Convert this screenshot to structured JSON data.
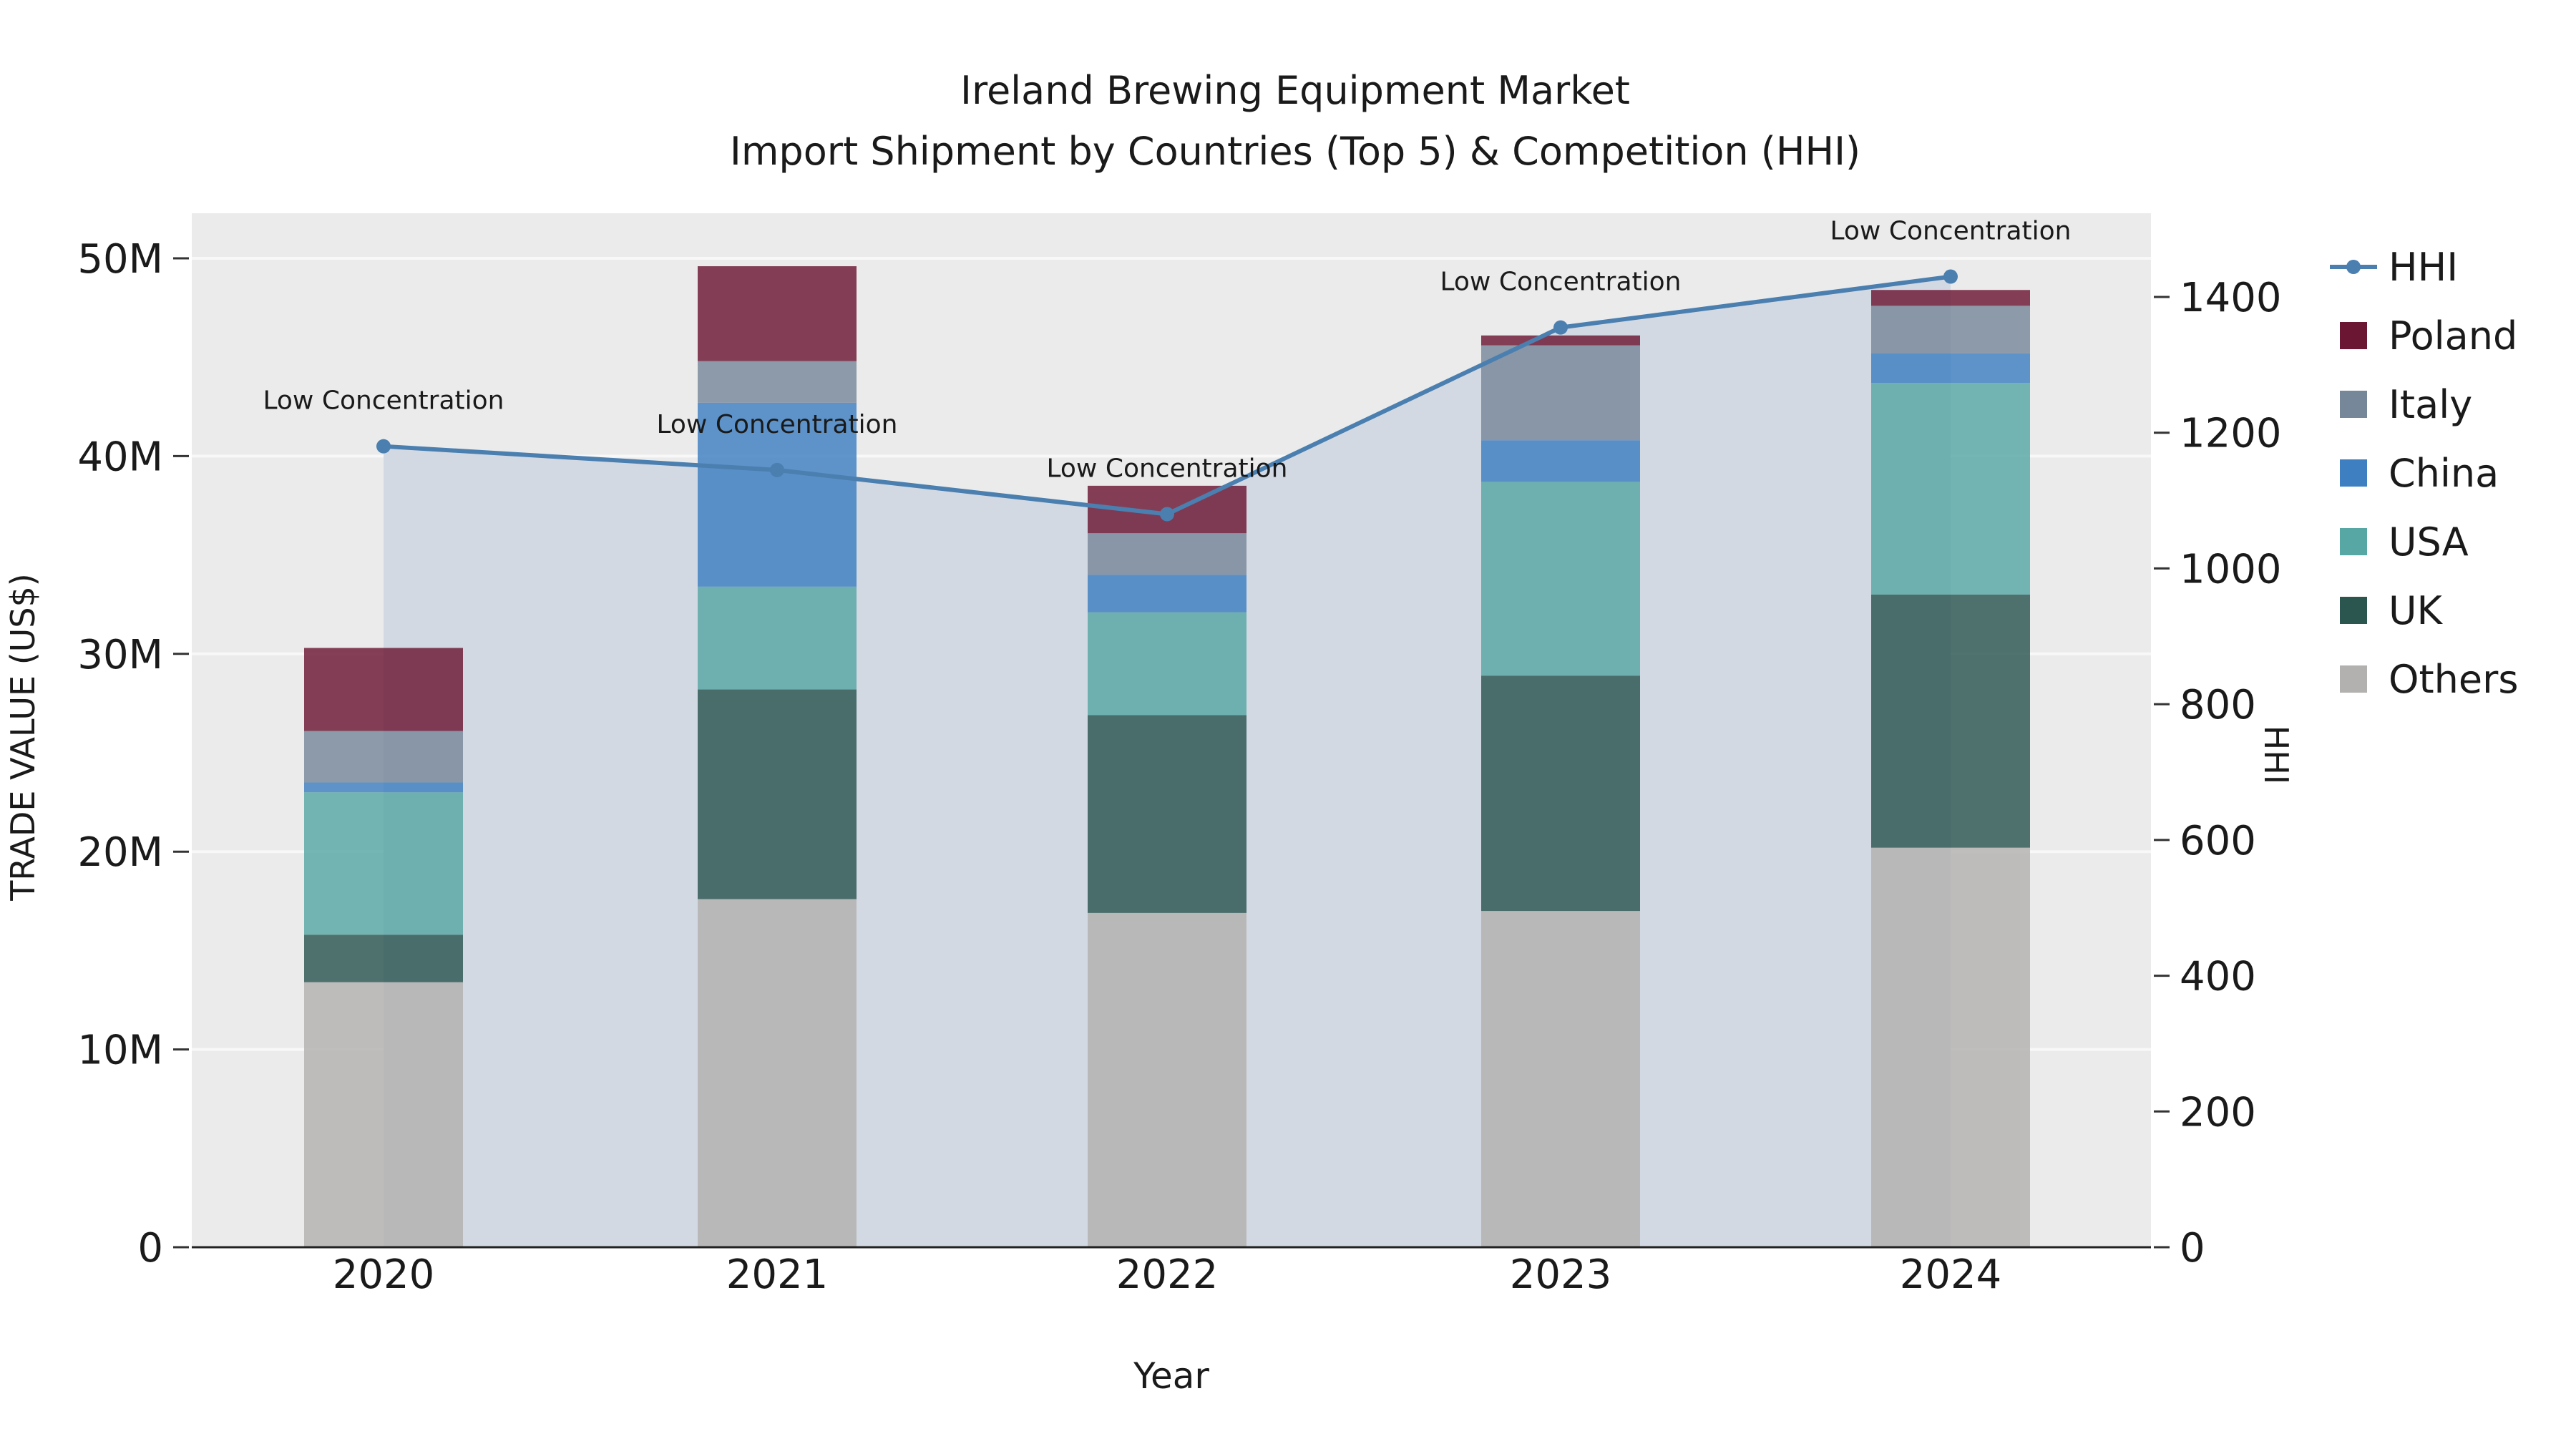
{
  "chart_data": {
    "type": "bar+line",
    "title": "Ireland Brewing Equipment Market",
    "subtitle": "Import Shipment by Countries (Top 5) & Competition (HHI)",
    "xlabel": "Year",
    "ylabel_left": "TRADE VALUE (US$)",
    "ylabel_right": "HHI",
    "unit_left": "US$ millions",
    "categories": [
      "2020",
      "2021",
      "2022",
      "2023",
      "2024"
    ],
    "ylim_left": [
      0,
      50
    ],
    "yticks_left_labels": [
      "0",
      "10M",
      "20M",
      "30M",
      "40M",
      "50M"
    ],
    "yticks_left_values": [
      0,
      10,
      20,
      30,
      40,
      50
    ],
    "ylim_right": [
      0,
      1523
    ],
    "yticks_right_values": [
      0,
      200,
      400,
      600,
      800,
      1000,
      1200,
      1400
    ],
    "legend_position": "right",
    "grid": true,
    "stacked_bar_series": [
      {
        "name": "Others",
        "color": "#b3b1b0",
        "values": [
          13.4,
          17.6,
          16.9,
          17.0,
          20.2
        ]
      },
      {
        "name": "UK",
        "color": "#2b5650",
        "values": [
          2.4,
          10.6,
          10.0,
          11.9,
          12.8
        ]
      },
      {
        "name": "USA",
        "color": "#57a7a4",
        "values": [
          7.2,
          5.2,
          5.2,
          9.8,
          10.7
        ]
      },
      {
        "name": "China",
        "color": "#3d7fc1",
        "values": [
          0.5,
          9.3,
          1.9,
          2.1,
          1.5
        ]
      },
      {
        "name": "Italy",
        "color": "#77879a",
        "values": [
          2.6,
          2.1,
          2.1,
          4.8,
          2.4
        ]
      },
      {
        "name": "Poland",
        "color": "#6b1733",
        "values": [
          4.2,
          4.8,
          2.4,
          0.5,
          0.8
        ]
      }
    ],
    "legend_order": [
      "HHI",
      "Poland",
      "Italy",
      "China",
      "USA",
      "UK",
      "Others"
    ],
    "line_series": {
      "name": "HHI",
      "color": "#4a7fb0",
      "area_color": "#d3d9e3",
      "values": [
        1180,
        1145,
        1080,
        1355,
        1430
      ],
      "annotations": [
        "Low Concentration",
        "Low Concentration",
        "Low Concentration",
        "Low Concentration",
        "Low Concentration"
      ]
    }
  }
}
